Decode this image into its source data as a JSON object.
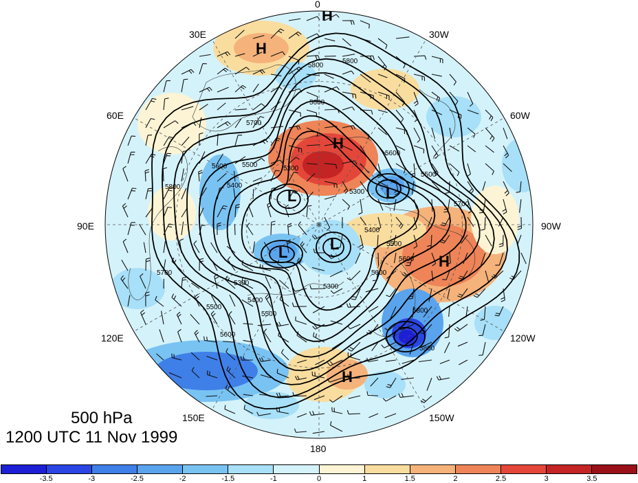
{
  "map": {
    "title_level": "500 hPa",
    "title_time": "1200 UTC 11 Nov 1999",
    "lon_labels": {
      "top": "0",
      "top_left": "30E",
      "top_right": "30W",
      "upper_left": "60E",
      "upper_right": "60W",
      "left": "90E",
      "right": "90W",
      "lower_left": "120E",
      "lower_right": "120W",
      "bottom_left": "150E",
      "bottom_right": "150W",
      "bottom": "180"
    },
    "contour_labels": [
      "5800",
      "5800",
      "5600",
      "5700",
      "5600",
      "5500",
      "5400",
      "5300",
      "5600",
      "5500",
      "5300",
      "5400",
      "5500",
      "5600",
      "5700",
      "5800",
      "5700",
      "5800",
      "5600",
      "5500",
      "5300",
      "5400",
      "5300",
      "5600",
      "5500",
      "5800"
    ],
    "centers": [
      {
        "kind": "H",
        "label": "H"
      },
      {
        "kind": "H",
        "label": "H"
      },
      {
        "kind": "H",
        "label": "H"
      },
      {
        "kind": "H",
        "label": "H"
      },
      {
        "kind": "H",
        "label": "H"
      },
      {
        "kind": "L",
        "label": "L"
      },
      {
        "kind": "L",
        "label": "L"
      },
      {
        "kind": "L",
        "label": "L"
      },
      {
        "kind": "L",
        "label": "L"
      }
    ]
  },
  "colorbar": {
    "ticks": [
      "-3.5",
      "-3",
      "-2.5",
      "-2",
      "-1.5",
      "-1",
      "0",
      "1",
      "1.5",
      "2",
      "2.5",
      "3",
      "3.5"
    ],
    "colors": [
      "#1c1fd4",
      "#2a45e4",
      "#3f7fe8",
      "#5aa4ee",
      "#79c3f3",
      "#a7e0f8",
      "#d4f2fa",
      "#fcf4d4",
      "#f9dd9e",
      "#f5b27a",
      "#ee8457",
      "#e4473a",
      "#c42424",
      "#9a1018"
    ]
  }
}
